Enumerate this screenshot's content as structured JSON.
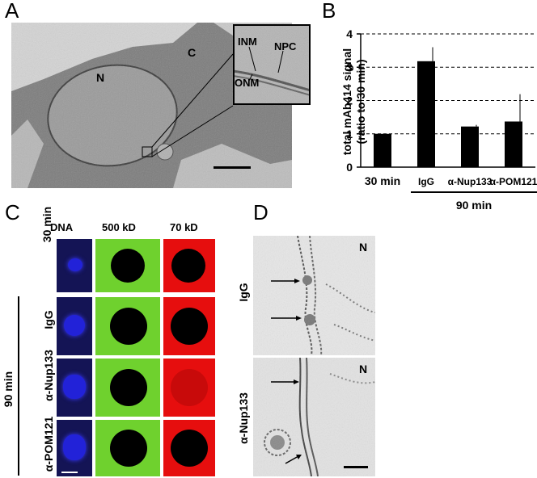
{
  "panels": {
    "A": {
      "letter": "A",
      "labels": {
        "C": "C",
        "N": "N",
        "INM": "INM",
        "NPC": "NPC",
        "ONM": "ONM"
      }
    },
    "B": {
      "letter": "B",
      "group_label": "90 min"
    },
    "C": {
      "letter": "C",
      "columns": [
        "DNA",
        "500 kD",
        "70 kD"
      ],
      "rows": [
        "30 min",
        "IgG",
        "α-Nup133",
        "α-POM121"
      ],
      "group_label": "90 min"
    },
    "D": {
      "letter": "D",
      "rows": [
        "IgG",
        "α-Nup133"
      ],
      "n_label": "N"
    }
  },
  "colors": {
    "dna": "#1a1adf",
    "dna_bg": "#141455",
    "green": "#6fd12e",
    "red": "#e60e0e",
    "bar": "#000000"
  },
  "chart_data": {
    "type": "bar",
    "categories": [
      "30 min",
      "IgG",
      "α-Nup133",
      "α-POM121"
    ],
    "values": [
      1.0,
      3.18,
      1.22,
      1.37
    ],
    "errors": [
      0,
      0.42,
      0.05,
      0.82
    ],
    "ylabel": "total mAb414 signal (ratio to 30 min)",
    "ylabel_lines": [
      "total mAb414 signal",
      "(ratio to 30 min)"
    ],
    "ylim": [
      0,
      4
    ],
    "yticks": [
      0,
      1,
      2,
      3,
      4
    ],
    "grid": "dashed horizontal",
    "group_label": "90 min",
    "group_members": [
      "IgG",
      "α-Nup133",
      "α-POM121"
    ]
  }
}
